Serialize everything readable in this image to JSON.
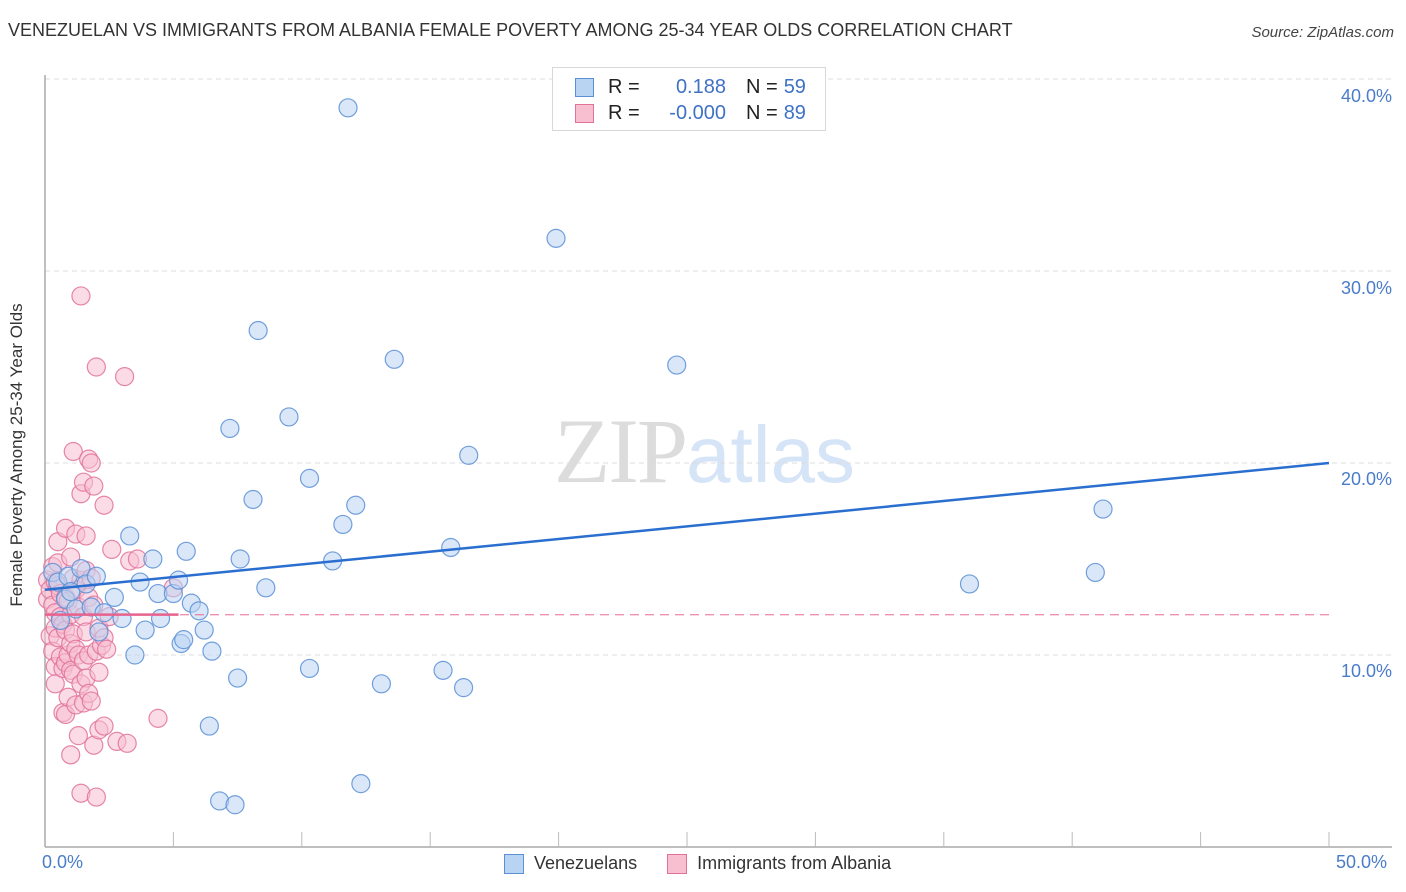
{
  "header": {
    "title": "VENEZUELAN VS IMMIGRANTS FROM ALBANIA FEMALE POVERTY AMONG 25-34 YEAR OLDS CORRELATION CHART",
    "source": "Source: ZipAtlas.com"
  },
  "watermark": {
    "zip": "ZIP",
    "atlas": "atlas"
  },
  "legend_top": {
    "rows": [
      {
        "r_label": "R =",
        "r_value": "0.188",
        "n_label": "N =",
        "n_value": "59"
      },
      {
        "r_label": "R =",
        "r_value": "-0.000",
        "n_label": "N =",
        "n_value": "89"
      }
    ]
  },
  "legend_bottom": {
    "items": [
      {
        "label": "Venezuelans"
      },
      {
        "label": "Immigrants from Albania"
      }
    ]
  },
  "axes": {
    "ylabel": "Female Poverty Among 25-34 Year Olds",
    "yticks": [
      "40.0%",
      "30.0%",
      "20.0%",
      "10.0%"
    ],
    "xticks": [
      "0.0%",
      "50.0%"
    ]
  },
  "colors": {
    "venezuelans_fill": "#b9d3f3",
    "venezuelans_stroke": "#5b8fd6",
    "venezuelans_line": "#2a6fd0",
    "albania_fill": "#f8bfd1",
    "albania_stroke": "#e0729a",
    "albania_line": "#e8628e",
    "tick_label": "#4a7cc9",
    "grid": "#dddddd"
  },
  "chart_data": {
    "type": "scatter",
    "title": "VENEZUELAN VS IMMIGRANTS FROM ALBANIA FEMALE POVERTY AMONG 25-34 YEAR OLDS CORRELATION CHART",
    "xlabel": "",
    "ylabel": "Female Poverty Among 25-34 Year Olds",
    "xlim": [
      0,
      50
    ],
    "ylim": [
      0,
      41
    ],
    "x_tick_labels": [
      "0.0%",
      "50.0%"
    ],
    "y_tick_labels": [
      "10.0%",
      "20.0%",
      "30.0%",
      "40.0%"
    ],
    "grid": true,
    "legend_position": "bottom",
    "series": [
      {
        "name": "Venezuelans",
        "R": 0.188,
        "N": 59,
        "trend": {
          "x": [
            0,
            50
          ],
          "y": [
            13.4,
            20.0
          ]
        },
        "points": [
          [
            0.3,
            14.3
          ],
          [
            0.5,
            13.8
          ],
          [
            0.8,
            12.9
          ],
          [
            0.9,
            14.1
          ],
          [
            1.0,
            13.3
          ],
          [
            1.2,
            12.4
          ],
          [
            1.4,
            14.5
          ],
          [
            1.6,
            13.7
          ],
          [
            1.8,
            12.5
          ],
          [
            2.0,
            14.1
          ],
          [
            2.1,
            11.2
          ],
          [
            2.3,
            12.2
          ],
          [
            2.7,
            13.0
          ],
          [
            3.0,
            11.9
          ],
          [
            3.3,
            16.2
          ],
          [
            3.5,
            10.0
          ],
          [
            3.7,
            13.8
          ],
          [
            3.9,
            11.3
          ],
          [
            4.2,
            15.0
          ],
          [
            4.4,
            13.2
          ],
          [
            4.5,
            11.9
          ],
          [
            5.0,
            13.2
          ],
          [
            5.2,
            13.9
          ],
          [
            5.3,
            10.6
          ],
          [
            5.4,
            10.8
          ],
          [
            5.5,
            15.4
          ],
          [
            5.7,
            12.7
          ],
          [
            6.0,
            12.3
          ],
          [
            6.2,
            11.3
          ],
          [
            6.4,
            6.3
          ],
          [
            6.5,
            10.2
          ],
          [
            6.8,
            2.4
          ],
          [
            7.2,
            21.8
          ],
          [
            7.4,
            2.2
          ],
          [
            7.5,
            8.8
          ],
          [
            7.6,
            15.0
          ],
          [
            8.1,
            18.1
          ],
          [
            8.3,
            26.9
          ],
          [
            8.6,
            13.5
          ],
          [
            9.5,
            22.4
          ],
          [
            10.3,
            19.2
          ],
          [
            10.3,
            9.3
          ],
          [
            11.2,
            14.9
          ],
          [
            11.6,
            16.8
          ],
          [
            11.8,
            38.5
          ],
          [
            12.1,
            17.8
          ],
          [
            12.3,
            3.3
          ],
          [
            13.1,
            8.5
          ],
          [
            13.6,
            25.4
          ],
          [
            15.5,
            9.2
          ],
          [
            15.8,
            15.6
          ],
          [
            16.3,
            8.3
          ],
          [
            16.5,
            20.4
          ],
          [
            19.9,
            31.7
          ],
          [
            24.6,
            25.1
          ],
          [
            36.0,
            13.7
          ],
          [
            40.9,
            14.3
          ],
          [
            41.2,
            17.6
          ],
          [
            0.6,
            11.8
          ]
        ]
      },
      {
        "name": "Immigrants from Albania",
        "R": -0.0,
        "N": 89,
        "trend": {
          "x": [
            0,
            50
          ],
          "y": [
            12.1,
            12.1
          ]
        },
        "points": [
          [
            0.1,
            13.9
          ],
          [
            0.1,
            12.9
          ],
          [
            0.2,
            11.0
          ],
          [
            0.2,
            13.4
          ],
          [
            0.3,
            12.6
          ],
          [
            0.3,
            14.6
          ],
          [
            0.3,
            10.2
          ],
          [
            0.4,
            9.4
          ],
          [
            0.4,
            12.2
          ],
          [
            0.4,
            13.8
          ],
          [
            0.4,
            11.4
          ],
          [
            0.4,
            8.5
          ],
          [
            0.5,
            10.9
          ],
          [
            0.5,
            14.8
          ],
          [
            0.5,
            15.9
          ],
          [
            0.5,
            13.6
          ],
          [
            0.6,
            13.2
          ],
          [
            0.6,
            12.0
          ],
          [
            0.6,
            9.9
          ],
          [
            0.7,
            11.6
          ],
          [
            0.7,
            7.0
          ],
          [
            0.7,
            9.3
          ],
          [
            0.8,
            16.6
          ],
          [
            0.8,
            13.0
          ],
          [
            0.8,
            11.3
          ],
          [
            0.8,
            9.6
          ],
          [
            0.8,
            6.9
          ],
          [
            0.9,
            12.8
          ],
          [
            0.9,
            10.0
          ],
          [
            0.9,
            7.8
          ],
          [
            1.0,
            15.1
          ],
          [
            1.0,
            12.1
          ],
          [
            1.0,
            10.6
          ],
          [
            1.0,
            9.2
          ],
          [
            1.0,
            4.8
          ],
          [
            1.1,
            20.6
          ],
          [
            1.1,
            14.0
          ],
          [
            1.1,
            11.1
          ],
          [
            1.1,
            9.0
          ],
          [
            1.2,
            16.3
          ],
          [
            1.2,
            13.4
          ],
          [
            1.2,
            10.3
          ],
          [
            1.2,
            7.4
          ],
          [
            1.3,
            12.5
          ],
          [
            1.3,
            10.0
          ],
          [
            1.3,
            5.8
          ],
          [
            1.4,
            28.7
          ],
          [
            1.4,
            18.4
          ],
          [
            1.4,
            13.9
          ],
          [
            1.4,
            8.5
          ],
          [
            1.4,
            2.8
          ],
          [
            1.5,
            12.0
          ],
          [
            1.5,
            9.7
          ],
          [
            1.5,
            7.5
          ],
          [
            1.5,
            19.0
          ],
          [
            1.6,
            14.4
          ],
          [
            1.6,
            11.2
          ],
          [
            1.6,
            8.8
          ],
          [
            1.6,
            16.2
          ],
          [
            1.7,
            20.2
          ],
          [
            1.7,
            13.0
          ],
          [
            1.7,
            10.0
          ],
          [
            1.7,
            8.0
          ],
          [
            1.8,
            20.0
          ],
          [
            1.8,
            14.0
          ],
          [
            1.8,
            7.6
          ],
          [
            1.9,
            18.8
          ],
          [
            1.9,
            12.6
          ],
          [
            1.9,
            5.3
          ],
          [
            2.0,
            25.0
          ],
          [
            2.0,
            10.2
          ],
          [
            2.0,
            2.6
          ],
          [
            2.1,
            11.4
          ],
          [
            2.1,
            9.1
          ],
          [
            2.1,
            6.1
          ],
          [
            2.2,
            10.5
          ],
          [
            2.3,
            17.8
          ],
          [
            2.3,
            10.9
          ],
          [
            2.3,
            6.3
          ],
          [
            2.4,
            10.3
          ],
          [
            2.5,
            12.0
          ],
          [
            2.6,
            15.5
          ],
          [
            2.8,
            5.5
          ],
          [
            3.1,
            24.5
          ],
          [
            3.2,
            5.4
          ],
          [
            3.3,
            14.9
          ],
          [
            4.4,
            6.7
          ],
          [
            5.0,
            13.5
          ],
          [
            3.6,
            15.0
          ]
        ]
      }
    ]
  }
}
